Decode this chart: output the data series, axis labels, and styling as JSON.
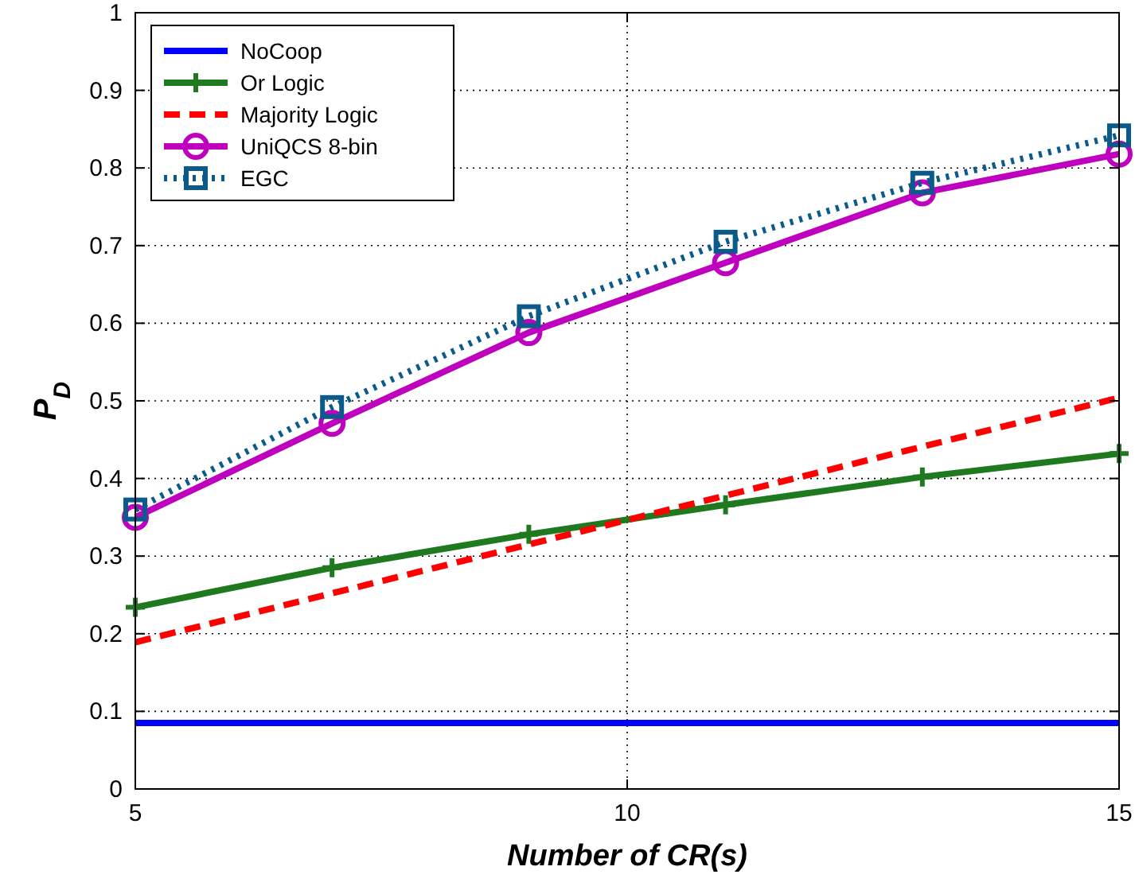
{
  "chart_data": {
    "type": "line",
    "xlabel": "Number of CR(s)",
    "ylabel": "P$_{D}$",
    "xlim": [
      5,
      15
    ],
    "xticks": [
      5,
      10,
      15
    ],
    "ylim": [
      0,
      1
    ],
    "yticks": [
      0,
      0.1,
      0.2,
      0.3,
      0.4,
      0.5,
      0.6,
      0.7,
      0.8,
      0.9,
      1
    ],
    "grid": true,
    "legend": "top left",
    "x": [
      5,
      7,
      9,
      11,
      13,
      15
    ],
    "series": [
      {
        "name": "NoCoop",
        "color": "#0000ff",
        "values": [
          0.085,
          0.085,
          0.085,
          0.085,
          0.085,
          0.085
        ],
        "marker": "none",
        "line_style": "solid"
      },
      {
        "name": "Or Logic",
        "color": "#1f7a1f",
        "values": [
          0.234,
          0.285,
          0.328,
          0.366,
          0.402,
          0.432
        ],
        "marker": "cross",
        "line_style": "solid"
      },
      {
        "name": "Majority Logic",
        "color": "#ff0000",
        "values": [
          0.189,
          0.252,
          0.315,
          0.378,
          0.441,
          0.504
        ],
        "marker": "none",
        "line_style": "dashed"
      },
      {
        "name": "UniQCS 8-bin",
        "color": "#bf00bf",
        "values": [
          0.35,
          0.471,
          0.588,
          0.678,
          0.768,
          0.818
        ],
        "marker": "circle",
        "line_style": "solid"
      },
      {
        "name": "EGC",
        "color": "#0b5a8c",
        "values": [
          0.36,
          0.492,
          0.609,
          0.705,
          0.781,
          0.842
        ],
        "marker": "square",
        "line_style": "dotted"
      }
    ]
  }
}
